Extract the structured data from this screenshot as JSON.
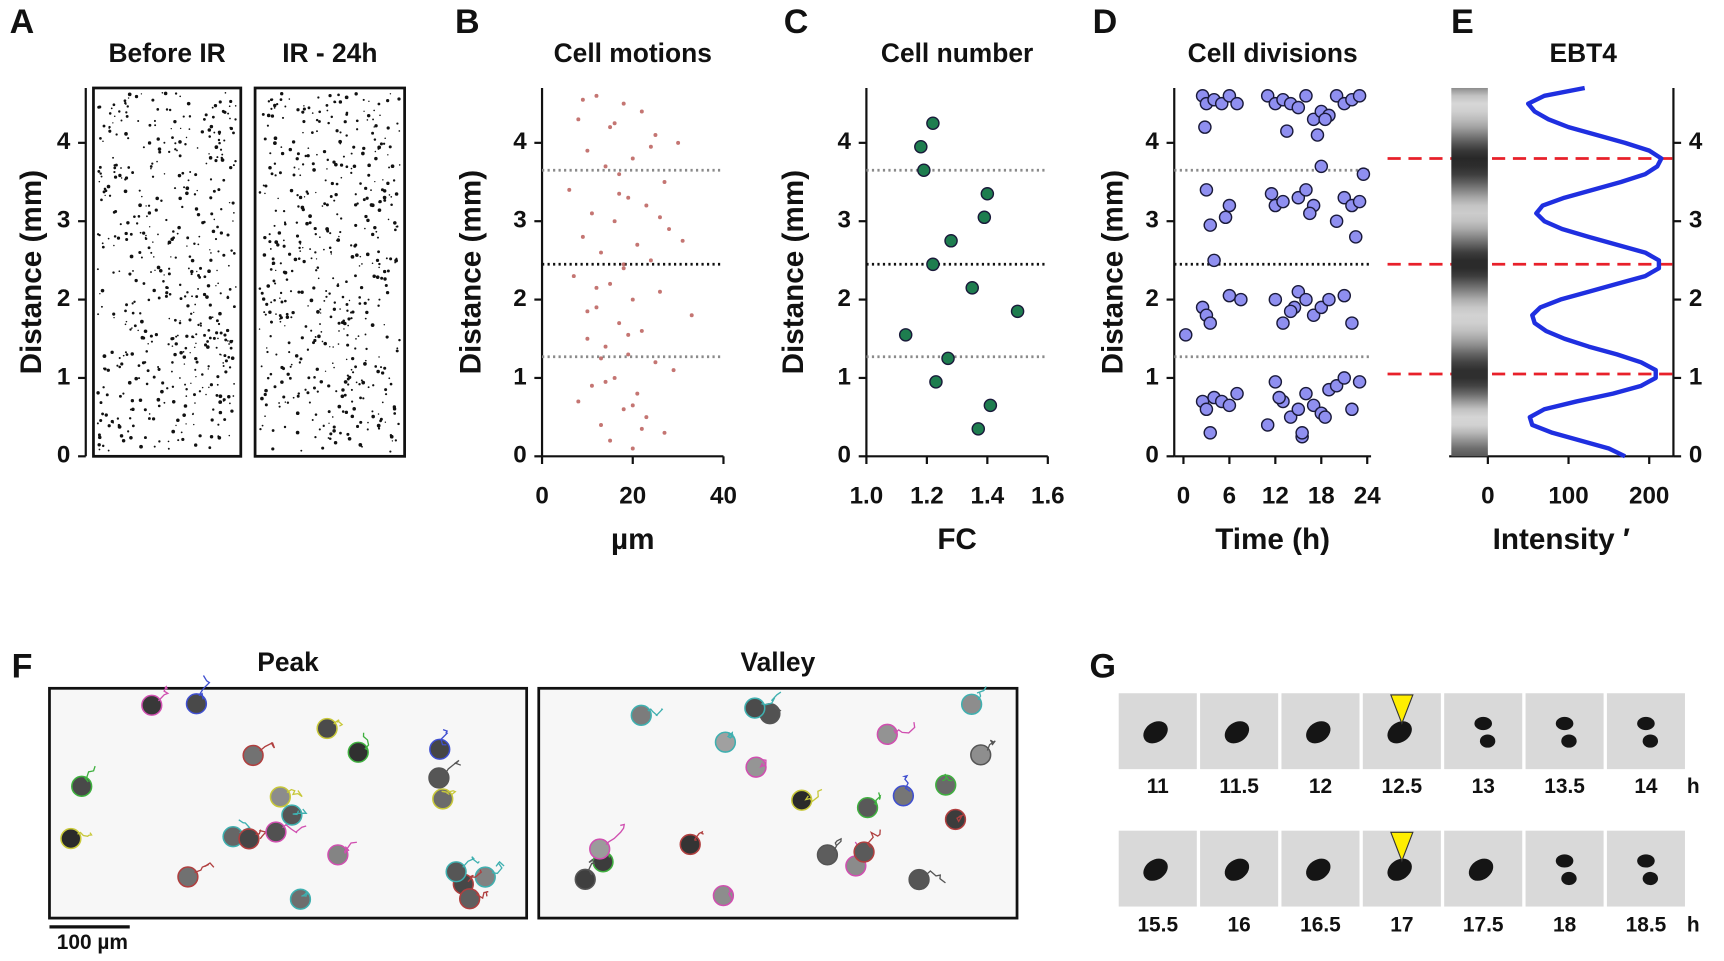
{
  "chart_data": [
    {
      "type": "image",
      "panel": "A",
      "titles": [
        "Before IR",
        "IR - 24h"
      ],
      "ylabel": "Distance (mm)",
      "ylim": [
        0,
        4.7
      ],
      "yticks": [
        0,
        1,
        2,
        3,
        4
      ]
    },
    {
      "type": "scatter",
      "panel": "B",
      "title": "Cell motions",
      "ylabel": "Distance (mm)",
      "xlabel": "µm",
      "xlim": [
        0,
        40
      ],
      "xticks": [
        0,
        20,
        40
      ],
      "ylim": [
        0,
        4.7
      ],
      "yticks": [
        0,
        1,
        2,
        3,
        4
      ],
      "color": "#b5524f",
      "point_size": 1.8,
      "hlines": [
        {
          "value": 1.27,
          "color": "#8a8a8a"
        },
        {
          "value": 2.45,
          "color": "#111111"
        },
        {
          "value": 3.65,
          "color": "#8a8a8a"
        }
      ],
      "x": [
        12,
        18,
        22,
        8,
        15,
        25,
        30,
        10,
        20,
        14,
        17,
        27,
        6,
        19,
        23,
        11,
        16,
        28,
        9,
        21,
        13,
        24,
        18,
        7,
        15,
        26,
        20,
        12,
        33,
        17,
        22,
        10,
        14,
        19,
        25,
        29,
        16,
        11,
        21,
        8,
        18,
        23,
        13,
        27,
        15,
        20,
        9,
        24,
        17,
        31,
        12,
        19,
        14,
        22,
        16,
        26,
        10,
        20,
        18,
        13
      ],
      "values": [
        4.6,
        4.5,
        4.4,
        4.3,
        4.2,
        4.1,
        4.0,
        3.9,
        3.8,
        3.7,
        3.6,
        3.5,
        3.4,
        3.3,
        3.2,
        3.1,
        3.0,
        2.9,
        2.8,
        2.7,
        2.6,
        2.5,
        2.4,
        2.3,
        2.2,
        2.1,
        2.0,
        1.9,
        1.8,
        1.7,
        1.6,
        1.5,
        1.4,
        1.3,
        1.2,
        1.1,
        1.0,
        0.9,
        0.8,
        0.7,
        0.6,
        0.5,
        0.4,
        0.3,
        0.2,
        0.1,
        4.55,
        3.95,
        3.35,
        2.75,
        2.15,
        1.55,
        0.95,
        0.35,
        4.25,
        3.05,
        1.85,
        0.65,
        2.45,
        1.25
      ]
    },
    {
      "type": "scatter",
      "panel": "C",
      "title": "Cell number",
      "ylabel": "Distance (mm)",
      "xlabel": "FC",
      "xlim": [
        1.0,
        1.6
      ],
      "xticks": [
        {
          "value": 1.0,
          "label": "1.0"
        },
        {
          "value": 1.2,
          "label": "1.2"
        },
        {
          "value": 1.4,
          "label": "1.4"
        },
        {
          "value": 1.6,
          "label": "1.6"
        }
      ],
      "ylim": [
        0,
        4.7
      ],
      "yticks": [
        0,
        1,
        2,
        3,
        4
      ],
      "color": "#1e7d4f",
      "point_size": 5.5,
      "hlines": [
        {
          "value": 1.27,
          "color": "#8a8a8a"
        },
        {
          "value": 2.45,
          "color": "#111111"
        },
        {
          "value": 3.65,
          "color": "#8a8a8a"
        }
      ],
      "x": [
        1.22,
        1.18,
        1.19,
        1.4,
        1.39,
        1.28,
        1.22,
        1.35,
        1.5,
        1.13,
        1.27,
        1.23,
        1.41,
        1.37
      ],
      "values": [
        4.25,
        3.95,
        3.65,
        3.35,
        3.05,
        2.75,
        2.45,
        2.15,
        1.85,
        1.55,
        1.25,
        0.95,
        0.65,
        0.35
      ]
    },
    {
      "type": "scatter",
      "panel": "D",
      "title": "Cell divisions",
      "ylabel": "Distance (mm)",
      "xlabel": "Time (h)",
      "xlim": [
        -1.2,
        24.5
      ],
      "xticks": [
        0,
        6,
        12,
        18,
        24
      ],
      "ylim": [
        0,
        4.7
      ],
      "yticks": [
        0,
        1,
        2,
        3,
        4
      ],
      "color": "#8f8ff0",
      "point_size": 5.5,
      "hlines": [
        {
          "value": 1.27,
          "color": "#8a8a8a"
        },
        {
          "value": 2.45,
          "color": "#111111"
        },
        {
          "value": 3.65,
          "color": "#8a8a8a"
        }
      ],
      "x": [
        2.5,
        3,
        4,
        5,
        6,
        7,
        11,
        12,
        13,
        14,
        15,
        16,
        17,
        18,
        19,
        20,
        21,
        22,
        23,
        2.8,
        13.5,
        17.5,
        18.5,
        3,
        5.5,
        6,
        11.5,
        12,
        13,
        15,
        16,
        17,
        18,
        20,
        21,
        22,
        23,
        23.5,
        3.5,
        16.5,
        22.5,
        0.3,
        2.5,
        3,
        4,
        6,
        7.5,
        12,
        13,
        14.5,
        15,
        16,
        17,
        18,
        19,
        21,
        22,
        3.5,
        14,
        2.5,
        3,
        3.5,
        4,
        5,
        6,
        7,
        11,
        12,
        13,
        14,
        15,
        15.5,
        16,
        17,
        18,
        19,
        20,
        21,
        22,
        23,
        12.5,
        15.5,
        18.5
      ],
      "values": [
        4.6,
        4.5,
        4.55,
        4.5,
        4.6,
        4.5,
        4.6,
        4.5,
        4.55,
        4.5,
        4.45,
        4.6,
        4.3,
        4.4,
        4.35,
        4.6,
        4.5,
        4.55,
        4.6,
        4.2,
        4.15,
        4.1,
        4.3,
        3.4,
        3.05,
        3.2,
        3.35,
        3.2,
        3.25,
        3.3,
        3.4,
        3.2,
        3.7,
        3.0,
        3.3,
        3.2,
        3.25,
        3.6,
        2.95,
        3.1,
        2.8,
        1.55,
        1.9,
        1.8,
        2.5,
        2.05,
        2.0,
        2.0,
        1.7,
        1.9,
        2.1,
        2.0,
        1.8,
        1.9,
        2.0,
        2.05,
        1.7,
        1.7,
        1.85,
        0.7,
        0.6,
        0.3,
        0.75,
        0.7,
        0.65,
        0.8,
        0.4,
        0.95,
        0.7,
        0.5,
        0.6,
        0.25,
        0.8,
        0.65,
        0.55,
        0.85,
        0.9,
        1.0,
        0.6,
        0.95,
        0.75,
        0.3,
        0.5
      ]
    },
    {
      "type": "line",
      "panel": "E",
      "title": "EBT4",
      "xlabel": "Intensity ′",
      "xlim": [
        -48,
        230
      ],
      "xticks": [
        0,
        100,
        200
      ],
      "ylim": [
        0,
        4.7
      ],
      "yticks": [
        0,
        1,
        2,
        3,
        4
      ],
      "y_axis_side": "right",
      "color": "#1f2fe0",
      "hlines": [
        {
          "value": 1.05,
          "color": "#e8202a"
        },
        {
          "value": 2.45,
          "color": "#e8202a"
        },
        {
          "value": 3.8,
          "color": "#e8202a"
        }
      ],
      "distance": [
        0,
        0.1,
        0.2,
        0.3,
        0.4,
        0.5,
        0.6,
        0.7,
        0.8,
        0.9,
        1.0,
        1.1,
        1.2,
        1.3,
        1.4,
        1.5,
        1.6,
        1.7,
        1.8,
        1.9,
        2.0,
        2.1,
        2.2,
        2.3,
        2.4,
        2.5,
        2.6,
        2.7,
        2.8,
        2.9,
        3.0,
        3.1,
        3.2,
        3.3,
        3.4,
        3.5,
        3.6,
        3.7,
        3.8,
        3.9,
        4.0,
        4.1,
        4.2,
        4.3,
        4.4,
        4.5,
        4.6,
        4.7
      ],
      "values": [
        170,
        150,
        115,
        80,
        55,
        52,
        70,
        110,
        155,
        190,
        208,
        208,
        190,
        160,
        125,
        95,
        72,
        58,
        55,
        65,
        90,
        125,
        160,
        195,
        212,
        212,
        195,
        160,
        125,
        92,
        70,
        60,
        68,
        95,
        130,
        165,
        195,
        210,
        215,
        200,
        170,
        135,
        100,
        75,
        58,
        50,
        70,
        120
      ]
    }
  ],
  "panel_f": {
    "label": "F",
    "titles": [
      "Peak",
      "Valley"
    ],
    "scale_bar": "100 µm"
  },
  "panel_g": {
    "label": "G",
    "rows": [
      [
        "11",
        "11.5",
        "12",
        "12.5",
        "13",
        "13.5",
        "14"
      ],
      [
        "15.5",
        "16",
        "16.5",
        "17",
        "17.5",
        "18",
        "18.5"
      ]
    ],
    "unit": "h"
  }
}
